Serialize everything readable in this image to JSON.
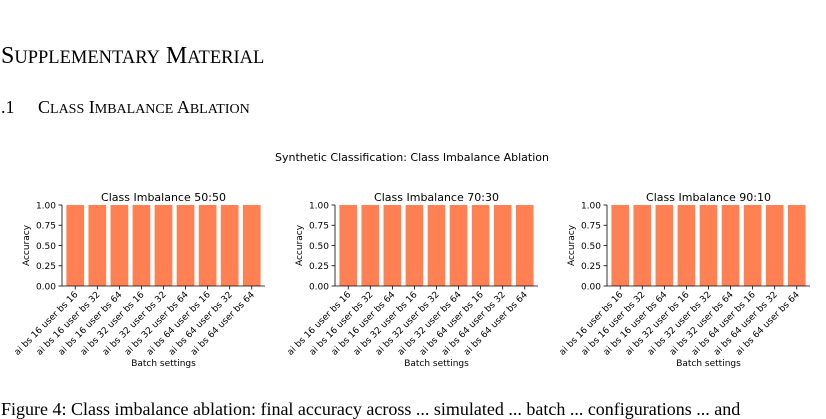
{
  "section": {
    "first_letter_1": "S",
    "rest_1": "UPPLEMENTARY",
    "first_letter_2": "M",
    "rest_2": "ATERIAL"
  },
  "subsection": {
    "number": ".1",
    "first_letter_1": "C",
    "rest_1": "LASS",
    "first_letter_2": "I",
    "rest_2": "MBALANCE",
    "first_letter_3": "A",
    "rest_3": "BLATION"
  },
  "figure": {
    "suptitle": "Synthetic Classification: Class Imbalance Ablation"
  },
  "caption": {
    "text": "Figure 4: Class imbalance ablation: final accuracy across ... simulated ... batch ... configurations ... and"
  },
  "colors": {
    "bar": "#ff8052",
    "axis": "#000000"
  },
  "chart_data": [
    {
      "type": "bar",
      "title": "Class Imbalance 50:50",
      "xlabel": "Batch settings",
      "ylabel": "Accuracy",
      "ylim": [
        0,
        1.0
      ],
      "yticks": [
        "0.00",
        "0.25",
        "0.50",
        "0.75",
        "1.00"
      ],
      "grid": false,
      "categories": [
        "ai bs 16 user bs 16",
        "ai bs 16 user bs 32",
        "ai bs 16 user bs 64",
        "ai bs 32 user bs 16",
        "ai bs 32 user bs 32",
        "ai bs 32 user bs 64",
        "ai bs 64 user bs 16",
        "ai bs 64 user bs 32",
        "ai bs 64 user bs 64"
      ],
      "values": [
        1.0,
        1.0,
        1.0,
        1.0,
        1.0,
        1.0,
        1.0,
        1.0,
        1.0
      ]
    },
    {
      "type": "bar",
      "title": "Class Imbalance 70:30",
      "xlabel": "Batch settings",
      "ylabel": "Accuracy",
      "ylim": [
        0,
        1.0
      ],
      "yticks": [
        "0.00",
        "0.25",
        "0.50",
        "0.75",
        "1.00"
      ],
      "grid": false,
      "categories": [
        "ai bs 16 user bs 16",
        "ai bs 16 user bs 32",
        "ai bs 16 user bs 64",
        "ai bs 32 user bs 16",
        "ai bs 32 user bs 32",
        "ai bs 32 user bs 64",
        "ai bs 64 user bs 16",
        "ai bs 64 user bs 32",
        "ai bs 64 user bs 64"
      ],
      "values": [
        1.0,
        1.0,
        1.0,
        1.0,
        1.0,
        1.0,
        1.0,
        1.0,
        1.0
      ]
    },
    {
      "type": "bar",
      "title": "Class Imbalance 90:10",
      "xlabel": "Batch settings",
      "ylabel": "Accuracy",
      "ylim": [
        0,
        1.0
      ],
      "yticks": [
        "0.00",
        "0.25",
        "0.50",
        "0.75",
        "1.00"
      ],
      "grid": false,
      "categories": [
        "ai bs 16 user bs 16",
        "ai bs 16 user bs 32",
        "ai bs 16 user bs 64",
        "ai bs 32 user bs 16",
        "ai bs 32 user bs 32",
        "ai bs 32 user bs 64",
        "ai bs 64 user bs 16",
        "ai bs 64 user bs 32",
        "ai bs 64 user bs 64"
      ],
      "values": [
        1.0,
        1.0,
        1.0,
        1.0,
        1.0,
        1.0,
        1.0,
        1.0,
        1.0
      ]
    }
  ]
}
